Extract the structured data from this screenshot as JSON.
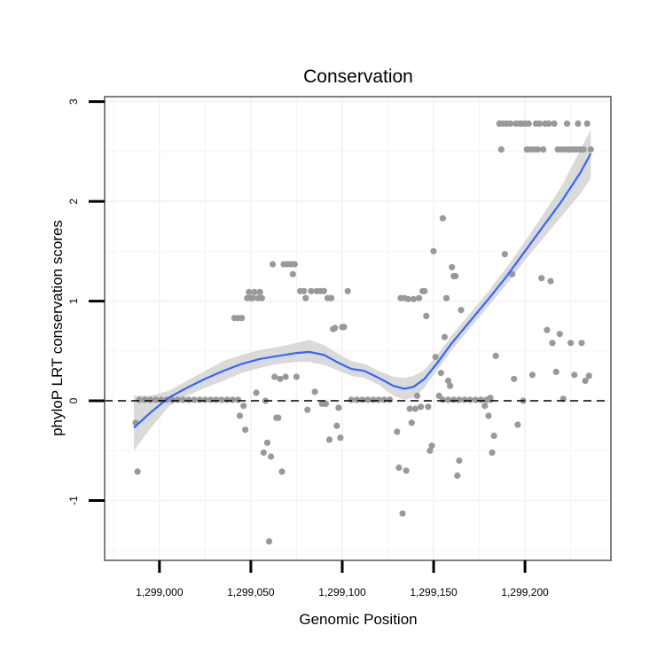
{
  "chart_data": {
    "type": "scatter",
    "title": "Conservation",
    "xlabel": "Genomic Position",
    "ylabel": "phyloP LRT conservation scores",
    "xlim": [
      1298970,
      1299247
    ],
    "ylim": [
      -1.6,
      3.05
    ],
    "xticks": [
      1299000,
      1299050,
      1299100,
      1299150,
      1299200
    ],
    "xtick_labels": [
      "1,299,000",
      "1,299,050",
      "1,299,100",
      "1,299,150",
      "1,299,200"
    ],
    "yticks": [
      -1,
      0,
      1,
      2,
      3
    ],
    "ytick_labels": [
      "-1",
      "0",
      "1",
      "2",
      "3"
    ],
    "x_minor_gridlines": [
      1298975,
      1299025,
      1299075,
      1299125,
      1299175,
      1299225
    ],
    "y_minor_gridlines": [
      -1.5,
      -0.5,
      0.5,
      1.5,
      2.5
    ],
    "reference_line": {
      "y": 0,
      "style": "dashed",
      "color": "#000000"
    },
    "colors": {
      "points": "#999999",
      "smooth_line": "#3366FF",
      "ribbon": "#D3D3D3",
      "panel_border": "#7F7F7F",
      "grid": "#F4F4F4"
    },
    "series": [
      {
        "name": "observed",
        "kind": "points",
        "points": [
          [
            1298987,
            -0.22
          ],
          [
            1298988,
            -0.71
          ],
          [
            1298989,
            0.01
          ],
          [
            1298992,
            0.01
          ],
          [
            1298995,
            0.01
          ],
          [
            1298998,
            0.01
          ],
          [
            1299001,
            0.01
          ],
          [
            1299004,
            0.01
          ],
          [
            1299007,
            0.01
          ],
          [
            1299010,
            0.01
          ],
          [
            1299013,
            0.01
          ],
          [
            1299016,
            0.01
          ],
          [
            1299019,
            0.01
          ],
          [
            1299022,
            0.01
          ],
          [
            1299025,
            0.01
          ],
          [
            1299028,
            0.01
          ],
          [
            1299031,
            0.01
          ],
          [
            1299034,
            0.01
          ],
          [
            1299037,
            0.01
          ],
          [
            1299040,
            0.01
          ],
          [
            1299043,
            0.01
          ],
          [
            1299041,
            0.83
          ],
          [
            1299043,
            0.83
          ],
          [
            1299044,
            -0.15
          ],
          [
            1299045,
            0.83
          ],
          [
            1299046,
            -0.05
          ],
          [
            1299047,
            -0.29
          ],
          [
            1299048,
            1.03
          ],
          [
            1299049,
            1.09
          ],
          [
            1299050,
            1.03
          ],
          [
            1299051,
            1.03
          ],
          [
            1299052,
            1.09
          ],
          [
            1299053,
            0.08
          ],
          [
            1299054,
            1.03
          ],
          [
            1299055,
            1.09
          ],
          [
            1299056,
            1.03
          ],
          [
            1299057,
            -0.52
          ],
          [
            1299058,
            0.0
          ],
          [
            1299059,
            -0.42
          ],
          [
            1299060,
            -1.41
          ],
          [
            1299061,
            -0.56
          ],
          [
            1299062,
            1.37
          ],
          [
            1299063,
            0.24
          ],
          [
            1299064,
            -0.17
          ],
          [
            1299065,
            -0.17
          ],
          [
            1299066,
            0.22
          ],
          [
            1299067,
            -0.71
          ],
          [
            1299068,
            1.37
          ],
          [
            1299069,
            0.24
          ],
          [
            1299070,
            1.37
          ],
          [
            1299072,
            1.37
          ],
          [
            1299073,
            1.27
          ],
          [
            1299074,
            1.37
          ],
          [
            1299075,
            0.24
          ],
          [
            1299077,
            1.1
          ],
          [
            1299079,
            1.1
          ],
          [
            1299080,
            1.03
          ],
          [
            1299081,
            -0.09
          ],
          [
            1299083,
            1.1
          ],
          [
            1299085,
            0.09
          ],
          [
            1299086,
            1.1
          ],
          [
            1299088,
            1.1
          ],
          [
            1299089,
            -0.03
          ],
          [
            1299090,
            1.1
          ],
          [
            1299091,
            -0.03
          ],
          [
            1299092,
            1.03
          ],
          [
            1299093,
            -0.39
          ],
          [
            1299094,
            1.03
          ],
          [
            1299095,
            0.72
          ],
          [
            1299096,
            0.73
          ],
          [
            1299097,
            -0.25
          ],
          [
            1299098,
            -0.07
          ],
          [
            1299099,
            -0.37
          ],
          [
            1299100,
            0.74
          ],
          [
            1299101,
            0.74
          ],
          [
            1299103,
            1.1
          ],
          [
            1299105,
            0.01
          ],
          [
            1299108,
            0.01
          ],
          [
            1299111,
            0.01
          ],
          [
            1299114,
            0.01
          ],
          [
            1299117,
            0.01
          ],
          [
            1299120,
            0.01
          ],
          [
            1299123,
            0.01
          ],
          [
            1299126,
            0.01
          ],
          [
            1299130,
            -0.31
          ],
          [
            1299131,
            -0.67
          ],
          [
            1299132,
            1.03
          ],
          [
            1299133,
            -1.13
          ],
          [
            1299134,
            1.03
          ],
          [
            1299135,
            -0.7
          ],
          [
            1299136,
            1.02
          ],
          [
            1299137,
            -0.08
          ],
          [
            1299138,
            -0.22
          ],
          [
            1299139,
            1.02
          ],
          [
            1299140,
            -0.08
          ],
          [
            1299141,
            0.05
          ],
          [
            1299142,
            1.03
          ],
          [
            1299143,
            -0.06
          ],
          [
            1299144,
            1.1
          ],
          [
            1299145,
            1.1
          ],
          [
            1299146,
            0.85
          ],
          [
            1299147,
            -0.06
          ],
          [
            1299148,
            -0.5
          ],
          [
            1299149,
            -0.45
          ],
          [
            1299150,
            1.5
          ],
          [
            1299151,
            0.44
          ],
          [
            1299153,
            0.05
          ],
          [
            1299154,
            0.28
          ],
          [
            1299155,
            1.83
          ],
          [
            1299156,
            0.64
          ],
          [
            1299157,
            1.03
          ],
          [
            1299158,
            0.2
          ],
          [
            1299159,
            0.15
          ],
          [
            1299160,
            1.34
          ],
          [
            1299161,
            1.25
          ],
          [
            1299162,
            1.25
          ],
          [
            1299163,
            -0.75
          ],
          [
            1299164,
            -0.6
          ],
          [
            1299165,
            0.91
          ],
          [
            1299155,
            0.01
          ],
          [
            1299158,
            0.01
          ],
          [
            1299161,
            0.01
          ],
          [
            1299164,
            0.01
          ],
          [
            1299167,
            0.01
          ],
          [
            1299170,
            0.01
          ],
          [
            1299173,
            0.01
          ],
          [
            1299176,
            0.01
          ],
          [
            1299179,
            0.01
          ],
          [
            1299181,
            0.01
          ],
          [
            1299178,
            -0.05
          ],
          [
            1299180,
            -0.15
          ],
          [
            1299181,
            0.03
          ],
          [
            1299182,
            -0.52
          ],
          [
            1299183,
            -0.35
          ],
          [
            1299184,
            0.45
          ],
          [
            1299186,
            2.78
          ],
          [
            1299187,
            2.52
          ],
          [
            1299188,
            2.78
          ],
          [
            1299189,
            1.47
          ],
          [
            1299190,
            2.78
          ],
          [
            1299192,
            2.78
          ],
          [
            1299193,
            1.27
          ],
          [
            1299194,
            0.22
          ],
          [
            1299195,
            2.78
          ],
          [
            1299196,
            -0.24
          ],
          [
            1299197,
            2.78
          ],
          [
            1299198,
            2.78
          ],
          [
            1299199,
            0.0
          ],
          [
            1299200,
            2.78
          ],
          [
            1299201,
            2.52
          ],
          [
            1299202,
            2.78
          ],
          [
            1299203,
            2.52
          ],
          [
            1299204,
            0.26
          ],
          [
            1299205,
            2.52
          ],
          [
            1299206,
            2.78
          ],
          [
            1299207,
            2.52
          ],
          [
            1299208,
            2.78
          ],
          [
            1299209,
            1.23
          ],
          [
            1299210,
            2.52
          ],
          [
            1299211,
            2.78
          ],
          [
            1299212,
            0.71
          ],
          [
            1299213,
            2.78
          ],
          [
            1299214,
            1.2
          ],
          [
            1299215,
            0.58
          ],
          [
            1299216,
            2.78
          ],
          [
            1299217,
            0.29
          ],
          [
            1299218,
            2.52
          ],
          [
            1299219,
            0.67
          ],
          [
            1299220,
            2.52
          ],
          [
            1299221,
            0.02
          ],
          [
            1299222,
            2.52
          ],
          [
            1299223,
            2.78
          ],
          [
            1299224,
            2.52
          ],
          [
            1299225,
            0.58
          ],
          [
            1299226,
            2.52
          ],
          [
            1299227,
            0.26
          ],
          [
            1299228,
            2.52
          ],
          [
            1299229,
            2.78
          ],
          [
            1299230,
            2.52
          ],
          [
            1299231,
            0.58
          ],
          [
            1299232,
            2.52
          ],
          [
            1299233,
            0.2
          ],
          [
            1299234,
            2.78
          ],
          [
            1299235,
            0.25
          ],
          [
            1299236,
            2.52
          ]
        ]
      },
      {
        "name": "loess fit",
        "kind": "smooth",
        "x": [
          1298986,
          1298995,
          1299005,
          1299015,
          1299025,
          1299035,
          1299045,
          1299055,
          1299065,
          1299075,
          1299082,
          1299090,
          1299098,
          1299105,
          1299112,
          1299120,
          1299128,
          1299134,
          1299139,
          1299145,
          1299152,
          1299160,
          1299170,
          1299180,
          1299190,
          1299200,
          1299210,
          1299220,
          1299230,
          1299236
        ],
        "y": [
          -0.27,
          -0.12,
          0.03,
          0.13,
          0.22,
          0.3,
          0.37,
          0.42,
          0.45,
          0.48,
          0.49,
          0.46,
          0.38,
          0.32,
          0.3,
          0.23,
          0.15,
          0.12,
          0.14,
          0.22,
          0.38,
          0.58,
          0.8,
          1.02,
          1.25,
          1.5,
          1.75,
          2.0,
          2.28,
          2.48
        ],
        "lower": [
          -0.5,
          -0.28,
          -0.06,
          0.05,
          0.13,
          0.2,
          0.28,
          0.33,
          0.37,
          0.39,
          0.39,
          0.36,
          0.3,
          0.25,
          0.23,
          0.16,
          0.05,
          0.01,
          0.03,
          0.13,
          0.31,
          0.51,
          0.73,
          0.95,
          1.17,
          1.41,
          1.63,
          1.85,
          2.07,
          2.23
        ],
        "upper": [
          0.05,
          0.05,
          0.1,
          0.2,
          0.3,
          0.4,
          0.46,
          0.51,
          0.54,
          0.58,
          0.61,
          0.56,
          0.47,
          0.4,
          0.37,
          0.3,
          0.24,
          0.23,
          0.25,
          0.31,
          0.46,
          0.66,
          0.88,
          1.1,
          1.34,
          1.6,
          1.87,
          2.15,
          2.51,
          2.72
        ]
      }
    ]
  }
}
